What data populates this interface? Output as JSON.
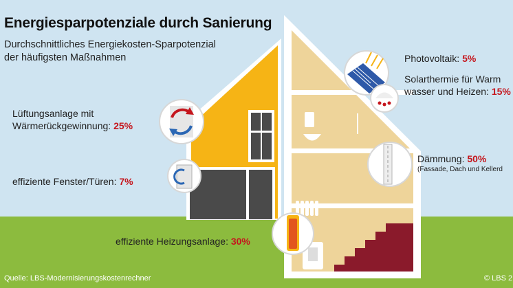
{
  "title": "Energiesparpotenziale durch Sanierung",
  "subtitle": {
    "line1": "Durchschnittliches Energiekosten-Sparpotenzial",
    "line2": "der häufigsten Maßnahmen"
  },
  "measures": {
    "photovoltaik": {
      "label": "Photovoltaik: ",
      "value": "5%"
    },
    "solarthermie": {
      "label_line1": "Solarthermie für Warm",
      "label_line2": "wasser und Heizen: ",
      "value": "15%"
    },
    "lueftung": {
      "label_line1": "Lüftungsanlage mit",
      "label_line2": "Wärmerückgewinnung: ",
      "value": "25%"
    },
    "daemmung": {
      "label": "Dämmung: ",
      "value": "50%",
      "note": "(Fassade, Dach und Kellerd"
    },
    "fenster": {
      "label": "effiziente Fenster/Türen: ",
      "value": "7%"
    },
    "heizung": {
      "label": "effiziente Heizungsanlage: ",
      "value": "30%"
    }
  },
  "footer": {
    "source": "Quelle: LBS-Modernisierungskostenrechner",
    "copyright": "© LBS 2"
  },
  "colors": {
    "sky": "#cfe4f1",
    "grass": "#8cbb3e",
    "house_yellow": "#f6b415",
    "house_beige": "#eed49a",
    "house_frame": "#ffffff",
    "accent_red": "#c5161d",
    "stairs": "#8a1a2b"
  },
  "icons": [
    "ventilation-icon",
    "window-icon",
    "solar-panel-icon",
    "solar-thermal-icon",
    "insulation-icon",
    "heater-icon"
  ]
}
